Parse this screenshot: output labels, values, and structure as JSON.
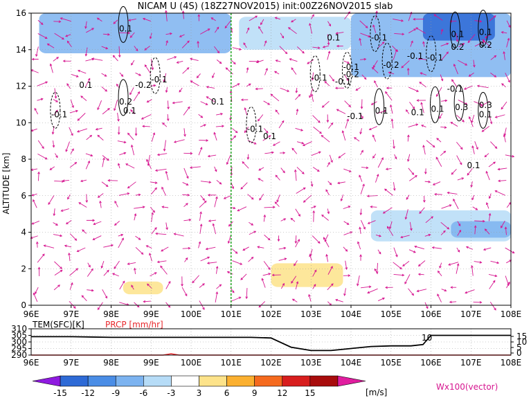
{
  "title": "NICAM U (4S) (18Z27NOV2015) init:00Z26NOV2015 slab",
  "chart_data": [
    {
      "type": "heatmap",
      "title": "NICAM U (4S) (18Z27NOV2015) init:00Z26NOV2015 slab",
      "xlabel": "",
      "ylabel": "ALTITUDE [km]",
      "xlim": [
        96,
        108
      ],
      "ylim": [
        0,
        16
      ],
      "x_ticks": [
        "96E",
        "97E",
        "98E",
        "99E",
        "100E",
        "101E",
        "102E",
        "103E",
        "104E",
        "105E",
        "106E",
        "107E",
        "108E"
      ],
      "y_ticks": [
        "0",
        "2",
        "4",
        "6",
        "8",
        "10",
        "12",
        "14",
        "16"
      ],
      "grid": true,
      "marker_line_lon": 101.0,
      "shaded_regions": [
        {
          "x0": 96.2,
          "x1": 101.0,
          "y0": 13.8,
          "y1": 16,
          "value": -9
        },
        {
          "x0": 101.2,
          "x1": 104.0,
          "y0": 14.0,
          "y1": 15.8,
          "value": -6
        },
        {
          "x0": 104.0,
          "x1": 108.0,
          "y0": 12.5,
          "y1": 16,
          "value": -9
        },
        {
          "x0": 105.8,
          "x1": 107.6,
          "y0": 14.5,
          "y1": 16,
          "value": -15
        },
        {
          "x0": 96.0,
          "x1": 99.5,
          "y0": 5.0,
          "y1": 6.5,
          "value": -3
        },
        {
          "x0": 104.5,
          "x1": 108.0,
          "y0": 3.5,
          "y1": 5.2,
          "value": -6
        },
        {
          "x0": 106.5,
          "x1": 108.0,
          "y0": 3.7,
          "y1": 4.6,
          "value": -9
        },
        {
          "x0": 102.0,
          "x1": 103.8,
          "y0": 1.0,
          "y1": 2.3,
          "value": 3
        },
        {
          "x0": 98.3,
          "x1": 99.3,
          "y0": 0.6,
          "y1": 1.3,
          "value": 3
        }
      ],
      "contour_labels": [
        {
          "x": 98.2,
          "y": 15.0,
          "text": "0.1"
        },
        {
          "x": 97.2,
          "y": 11.9,
          "text": "0.1"
        },
        {
          "x": 98.2,
          "y": 11.0,
          "text": "0.2"
        },
        {
          "x": 98.6,
          "y": 11.9,
          "text": "-0.2"
        },
        {
          "x": 99.0,
          "y": 12.2,
          "text": "-0.1"
        },
        {
          "x": 98.3,
          "y": 10.5,
          "text": "0.1"
        },
        {
          "x": 96.5,
          "y": 10.3,
          "text": "-0.1"
        },
        {
          "x": 100.5,
          "y": 11.0,
          "text": "0.1"
        },
        {
          "x": 101.4,
          "y": 9.5,
          "text": "-0.1"
        },
        {
          "x": 101.8,
          "y": 9.1,
          "text": "0.1"
        },
        {
          "x": 103.0,
          "y": 12.3,
          "text": "-0.1"
        },
        {
          "x": 103.4,
          "y": 14.5,
          "text": "0.1"
        },
        {
          "x": 104.5,
          "y": 14.5,
          "text": "-0.1"
        },
        {
          "x": 103.8,
          "y": 12.9,
          "text": "-0.1"
        },
        {
          "x": 103.8,
          "y": 12.5,
          "text": "-0.2"
        },
        {
          "x": 103.6,
          "y": 12.1,
          "text": "-0.1"
        },
        {
          "x": 104.8,
          "y": 13.0,
          "text": "-0.2"
        },
        {
          "x": 105.4,
          "y": 13.5,
          "text": "-0.1"
        },
        {
          "x": 105.9,
          "y": 13.4,
          "text": "-0.1"
        },
        {
          "x": 103.9,
          "y": 10.2,
          "text": "-0.1"
        },
        {
          "x": 104.6,
          "y": 10.5,
          "text": "0.1"
        },
        {
          "x": 105.5,
          "y": 10.4,
          "text": "0.1"
        },
        {
          "x": 106.0,
          "y": 10.6,
          "text": "0.1"
        },
        {
          "x": 106.4,
          "y": 11.7,
          "text": "-0.1"
        },
        {
          "x": 106.5,
          "y": 14.7,
          "text": "0.1"
        },
        {
          "x": 106.5,
          "y": 14.0,
          "text": "0.2"
        },
        {
          "x": 107.2,
          "y": 14.8,
          "text": "0.1"
        },
        {
          "x": 107.2,
          "y": 14.1,
          "text": "0.2"
        },
        {
          "x": 106.6,
          "y": 10.7,
          "text": "0.3"
        },
        {
          "x": 107.2,
          "y": 10.8,
          "text": "0.3"
        },
        {
          "x": 107.2,
          "y": 10.3,
          "text": "0.1"
        },
        {
          "x": 106.9,
          "y": 7.5,
          "text": "0.1"
        }
      ]
    },
    {
      "type": "line",
      "title": "",
      "xlim": [
        96,
        108
      ],
      "series": [
        {
          "name": "TEM(SFC)[K]",
          "color": "#000000",
          "x": [
            96,
            97,
            98,
            99,
            100,
            101,
            101.5,
            102,
            102.5,
            103,
            103.5,
            104,
            104.5,
            105,
            105.5,
            105.8,
            106,
            107,
            108
          ],
          "values": [
            304,
            304,
            303.5,
            303.5,
            303.5,
            303.5,
            303.5,
            303,
            296,
            293.5,
            293.5,
            295,
            296.5,
            297,
            297,
            298,
            305,
            305,
            305
          ]
        },
        {
          "name": "PRCP [mm/hr]",
          "color": "#e8262a",
          "x": [
            96,
            99.3,
            99.5,
            99.7,
            108
          ],
          "values": [
            290,
            290,
            291,
            290,
            290
          ]
        }
      ],
      "left_ticks": [
        "310",
        "305",
        "300",
        "295",
        "290"
      ],
      "right_ticks": [
        "15",
        "10",
        "5",
        "0"
      ],
      "annotation": "10"
    }
  ],
  "colorbar": {
    "labels": [
      "-15",
      "-12",
      "-9",
      "-6",
      "-3",
      "3",
      "6",
      "9",
      "12",
      "15"
    ],
    "colors": [
      "#8f1ae0",
      "#2e6ad6",
      "#4a8de6",
      "#7cb3f0",
      "#b6dcf7",
      "#ffffff",
      "#fde38a",
      "#fbb030",
      "#f56a1e",
      "#d81e1e",
      "#a80c0c",
      "#e01d9f"
    ],
    "unit": "[m/s]"
  },
  "vector_label": "Wx100(vector)",
  "temp_label": "TEM(SFC)[K]",
  "prcp_label": "PRCP [mm/hr]",
  "colors": {
    "vector": "#d6148f",
    "green_line": "#1da31d",
    "prcp_line": "#e8262a",
    "grid": "#9a9a9a"
  }
}
